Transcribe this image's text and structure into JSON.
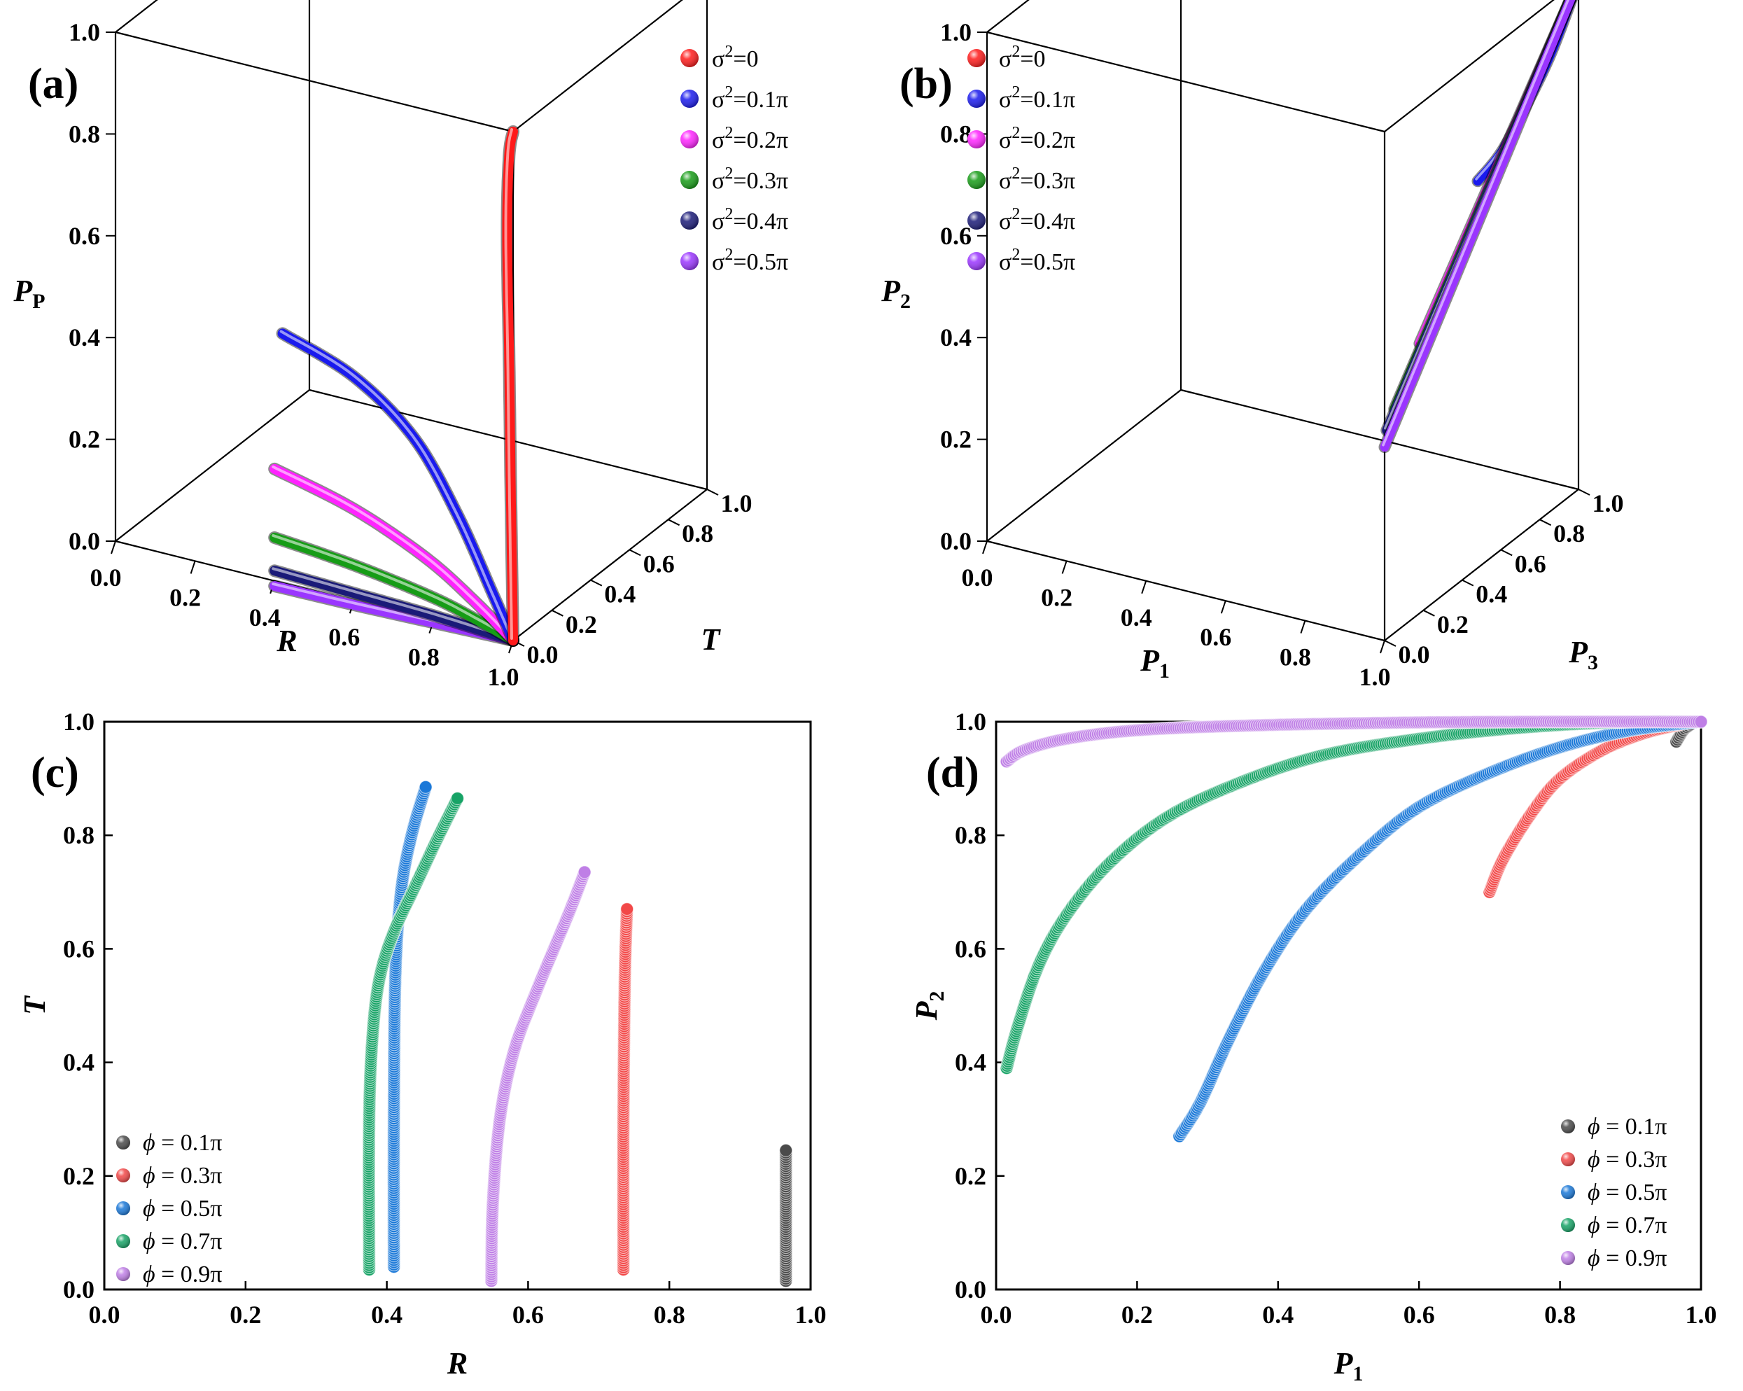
{
  "figure": {
    "description_title": ""
  },
  "colors": {
    "s0": "#ff1a1a",
    "s1": "#1a1aee",
    "s2": "#ff22ff",
    "s3": "#169c16",
    "s4": "#1a1a78",
    "s5": "#9a35ff",
    "phi1": "#4a4a4a",
    "phi3": "#f24848",
    "phi5": "#1a78d8",
    "phi7": "#17a366",
    "phi9": "#bf7fe6"
  },
  "chart_data": [
    {
      "id": "a",
      "type": "line3d",
      "panel_label": "(a)",
      "xlabel": "R",
      "ylabel": "T",
      "zlabel": "P",
      "zlabel_sub": "P",
      "xlim": [
        0,
        1
      ],
      "ylim": [
        0,
        1
      ],
      "zlim": [
        0,
        1
      ],
      "xticks": [
        "0.0",
        "0.2",
        "0.4",
        "0.6",
        "0.8",
        "1.0"
      ],
      "yticks": [
        "0.0",
        "0.2",
        "0.4",
        "0.6",
        "0.8",
        "1.0"
      ],
      "zticks": [
        "0.0",
        "0.2",
        "0.4",
        "0.6",
        "0.8",
        "1.0"
      ],
      "series": [
        {
          "name": "σ2=0",
          "label_base": "σ",
          "label_exp": "2",
          "label_rest": "=0",
          "color_key": "s0",
          "points": [
            [
              1,
              0,
              1.0
            ],
            [
              0.99,
              0,
              0.95
            ],
            [
              0.985,
              0,
              0.8
            ],
            [
              0.99,
              0,
              0.55
            ],
            [
              0.995,
              0,
              0.25
            ],
            [
              1,
              0,
              0
            ]
          ]
        },
        {
          "name": "σ2=0.1π",
          "label_base": "σ",
          "label_exp": "2",
          "label_rest": "=0.1π",
          "color_key": "s1",
          "points": [
            [
              0.42,
              0,
              0.49
            ],
            [
              0.6,
              0,
              0.44
            ],
            [
              0.75,
              0,
              0.35
            ],
            [
              0.86,
              0,
              0.22
            ],
            [
              0.95,
              0,
              0.08
            ],
            [
              1,
              0,
              0
            ]
          ]
        },
        {
          "name": "σ2=0.2π",
          "label_base": "σ",
          "label_exp": "2",
          "label_rest": "=0.2π",
          "color_key": "s2",
          "points": [
            [
              0.4,
              0,
              0.22
            ],
            [
              0.6,
              0,
              0.18
            ],
            [
              0.78,
              0,
              0.12
            ],
            [
              0.9,
              0,
              0.06
            ],
            [
              1,
              0,
              0
            ]
          ]
        },
        {
          "name": "σ2=0.3π",
          "label_base": "σ",
          "label_exp": "2",
          "label_rest": "=0.3π",
          "color_key": "s3",
          "points": [
            [
              0.4,
              0,
              0.085
            ],
            [
              0.6,
              0,
              0.07
            ],
            [
              0.8,
              0,
              0.045
            ],
            [
              0.92,
              0,
              0.02
            ],
            [
              1,
              0,
              0
            ]
          ]
        },
        {
          "name": "σ2=0.4π",
          "label_base": "σ",
          "label_exp": "2",
          "label_rest": "=0.4π",
          "color_key": "s4",
          "points": [
            [
              0.4,
              0,
              0.02
            ],
            [
              0.6,
              0,
              0.015
            ],
            [
              0.8,
              0,
              0.01
            ],
            [
              1,
              0,
              0
            ]
          ]
        },
        {
          "name": "σ2=0.5π",
          "label_base": "σ",
          "label_exp": "2",
          "label_rest": "=0.5π",
          "color_key": "s5",
          "points": [
            [
              0.4,
              0,
              -0.01
            ],
            [
              0.6,
              0,
              -0.008
            ],
            [
              0.8,
              0,
              -0.004
            ],
            [
              1,
              0,
              0
            ]
          ]
        }
      ]
    },
    {
      "id": "b",
      "type": "line3d",
      "panel_label": "(b)",
      "xlabel": "P",
      "xlabel_sub": "1",
      "ylabel": "P",
      "ylabel_sub": "3",
      "zlabel": "P",
      "zlabel_sub": "2",
      "xlim": [
        0,
        1
      ],
      "ylim": [
        0,
        1
      ],
      "zlim": [
        0,
        1
      ],
      "xticks": [
        "0.0",
        "0.2",
        "0.4",
        "0.6",
        "0.8",
        "1.0"
      ],
      "yticks": [
        "0.0",
        "0.2",
        "0.4",
        "0.6",
        "0.8",
        "1.0"
      ],
      "zticks": [
        "0.0",
        "0.2",
        "0.4",
        "0.6",
        "0.8",
        "1.0"
      ],
      "series": [
        {
          "name": "σ2=0",
          "label_base": "σ",
          "label_exp": "2",
          "label_rest": "=0",
          "color_key": "s0",
          "points": [
            [
              1,
              1,
              1
            ],
            [
              1,
              1,
              1
            ]
          ]
        },
        {
          "name": "σ2=0.1π",
          "label_base": "σ",
          "label_exp": "2",
          "label_rest": "=0.1π",
          "color_key": "s1",
          "points": [
            [
              1,
              0.48,
              0.76
            ],
            [
              1,
              0.6,
              0.78
            ],
            [
              1,
              0.72,
              0.83
            ],
            [
              1,
              0.86,
              0.9
            ],
            [
              1,
              1,
              1
            ]
          ]
        },
        {
          "name": "σ2=0.2π",
          "label_base": "σ",
          "label_exp": "2",
          "label_rest": "=0.2π",
          "color_key": "s2",
          "points": [
            [
              1,
              0.18,
              0.53
            ],
            [
              1,
              1,
              1
            ]
          ]
        },
        {
          "name": "σ2=0.3π",
          "label_base": "σ",
          "label_exp": "2",
          "label_rest": "=0.3π",
          "color_key": "s3",
          "points": [
            [
              1,
              0.05,
              0.44
            ],
            [
              1,
              1,
              1
            ]
          ]
        },
        {
          "name": "σ2=0.4π",
          "label_base": "σ",
          "label_exp": "2",
          "label_rest": "=0.4π",
          "color_key": "s4",
          "points": [
            [
              1,
              0.01,
              0.41
            ],
            [
              1,
              1,
              1
            ]
          ]
        },
        {
          "name": "σ2=0.5π",
          "label_base": "σ",
          "label_exp": "2",
          "label_rest": "=0.5π",
          "color_key": "s5",
          "points": [
            [
              1,
              0.0,
              0.38
            ],
            [
              1,
              1,
              1
            ]
          ]
        }
      ]
    },
    {
      "id": "c",
      "type": "scatter",
      "panel_label": "(c)",
      "xlabel": "R",
      "ylabel": "T",
      "xlim": [
        0,
        1
      ],
      "ylim": [
        0,
        1
      ],
      "xticks": [
        "0.0",
        "0.2",
        "0.4",
        "0.6",
        "0.8",
        "1.0"
      ],
      "yticks": [
        "0.0",
        "0.2",
        "0.4",
        "0.6",
        "0.8",
        "1.0"
      ],
      "legend_position": "bottom-left",
      "series": [
        {
          "name": "ϕ = 0.1π",
          "label_sym": "ϕ",
          "label_rest": " = 0.1π",
          "color_key": "phi1",
          "curve": [
            [
              0.965,
              0.015
            ],
            [
              0.965,
              0.245
            ]
          ]
        },
        {
          "name": "ϕ = 0.3π",
          "label_sym": "ϕ",
          "label_rest": " = 0.3π",
          "color_key": "phi3",
          "curve": [
            [
              0.735,
              0.035
            ],
            [
              0.735,
              0.3
            ],
            [
              0.737,
              0.55
            ],
            [
              0.74,
              0.67
            ]
          ]
        },
        {
          "name": "ϕ = 0.5π",
          "label_sym": "ϕ",
          "label_rest": " = 0.5π",
          "color_key": "phi5",
          "curve": [
            [
              0.41,
              0.04
            ],
            [
              0.41,
              0.3
            ],
            [
              0.412,
              0.55
            ],
            [
              0.42,
              0.7
            ],
            [
              0.435,
              0.8
            ],
            [
              0.455,
              0.885
            ]
          ]
        },
        {
          "name": "ϕ = 0.7π",
          "label_sym": "ϕ",
          "label_rest": " = 0.7π",
          "color_key": "phi7",
          "curve": [
            [
              0.375,
              0.035
            ],
            [
              0.375,
              0.3
            ],
            [
              0.38,
              0.45
            ],
            [
              0.39,
              0.55
            ],
            [
              0.41,
              0.63
            ],
            [
              0.44,
              0.71
            ],
            [
              0.47,
              0.79
            ],
            [
              0.5,
              0.865
            ]
          ]
        },
        {
          "name": "ϕ = 0.9π",
          "label_sym": "ϕ",
          "label_rest": " = 0.9π",
          "color_key": "phi9",
          "curve": [
            [
              0.548,
              0.015
            ],
            [
              0.55,
              0.15
            ],
            [
              0.56,
              0.3
            ],
            [
              0.58,
              0.42
            ],
            [
              0.61,
              0.52
            ],
            [
              0.64,
              0.61
            ],
            [
              0.66,
              0.67
            ],
            [
              0.68,
              0.735
            ]
          ]
        }
      ]
    },
    {
      "id": "d",
      "type": "scatter",
      "panel_label": "(d)",
      "xlabel": "P",
      "xlabel_sub": "1",
      "ylabel": "P",
      "ylabel_sub": "2",
      "xlim": [
        0,
        1
      ],
      "ylim": [
        0,
        1
      ],
      "xticks": [
        "0.0",
        "0.2",
        "0.4",
        "0.6",
        "0.8",
        "1.0"
      ],
      "yticks": [
        "0.0",
        "0.2",
        "0.4",
        "0.6",
        "0.8",
        "1.0"
      ],
      "legend_position": "bottom-right",
      "series": [
        {
          "name": "ϕ = 0.1π",
          "label_sym": "ϕ",
          "label_rest": " = 0.1π",
          "color_key": "phi1",
          "curve": [
            [
              0.965,
              0.965
            ],
            [
              0.975,
              0.985
            ],
            [
              0.985,
              0.995
            ]
          ]
        },
        {
          "name": "ϕ = 0.3π",
          "label_sym": "ϕ",
          "label_rest": " = 0.3π",
          "color_key": "phi3",
          "curve": [
            [
              0.7,
              0.7
            ],
            [
              0.72,
              0.76
            ],
            [
              0.76,
              0.84
            ],
            [
              0.8,
              0.9
            ],
            [
              0.86,
              0.95
            ],
            [
              0.92,
              0.98
            ],
            [
              0.97,
              0.995
            ]
          ]
        },
        {
          "name": "ϕ = 0.5π",
          "label_sym": "ϕ",
          "label_rest": " = 0.5π",
          "color_key": "phi5",
          "curve": [
            [
              0.26,
              0.27
            ],
            [
              0.29,
              0.33
            ],
            [
              0.33,
              0.44
            ],
            [
              0.38,
              0.56
            ],
            [
              0.44,
              0.67
            ],
            [
              0.52,
              0.77
            ],
            [
              0.6,
              0.85
            ],
            [
              0.7,
              0.91
            ],
            [
              0.8,
              0.955
            ],
            [
              0.9,
              0.985
            ],
            [
              1.0,
              1.0
            ]
          ]
        },
        {
          "name": "ϕ = 0.7π",
          "label_sym": "ϕ",
          "label_rest": " = 0.7π",
          "color_key": "phi7",
          "curve": [
            [
              0.015,
              0.39
            ],
            [
              0.03,
              0.46
            ],
            [
              0.06,
              0.57
            ],
            [
              0.1,
              0.66
            ],
            [
              0.16,
              0.75
            ],
            [
              0.24,
              0.83
            ],
            [
              0.34,
              0.89
            ],
            [
              0.46,
              0.94
            ],
            [
              0.6,
              0.97
            ],
            [
              0.75,
              0.99
            ],
            [
              0.9,
              1.0
            ],
            [
              1.0,
              1.0
            ]
          ]
        },
        {
          "name": "ϕ = 0.9π",
          "label_sym": "ϕ",
          "label_rest": " = 0.9π",
          "color_key": "phi9",
          "curve": [
            [
              0.015,
              0.93
            ],
            [
              0.04,
              0.95
            ],
            [
              0.1,
              0.97
            ],
            [
              0.2,
              0.985
            ],
            [
              0.35,
              0.993
            ],
            [
              0.55,
              0.998
            ],
            [
              0.75,
              1.0
            ],
            [
              1.0,
              1.0
            ]
          ]
        }
      ]
    }
  ]
}
